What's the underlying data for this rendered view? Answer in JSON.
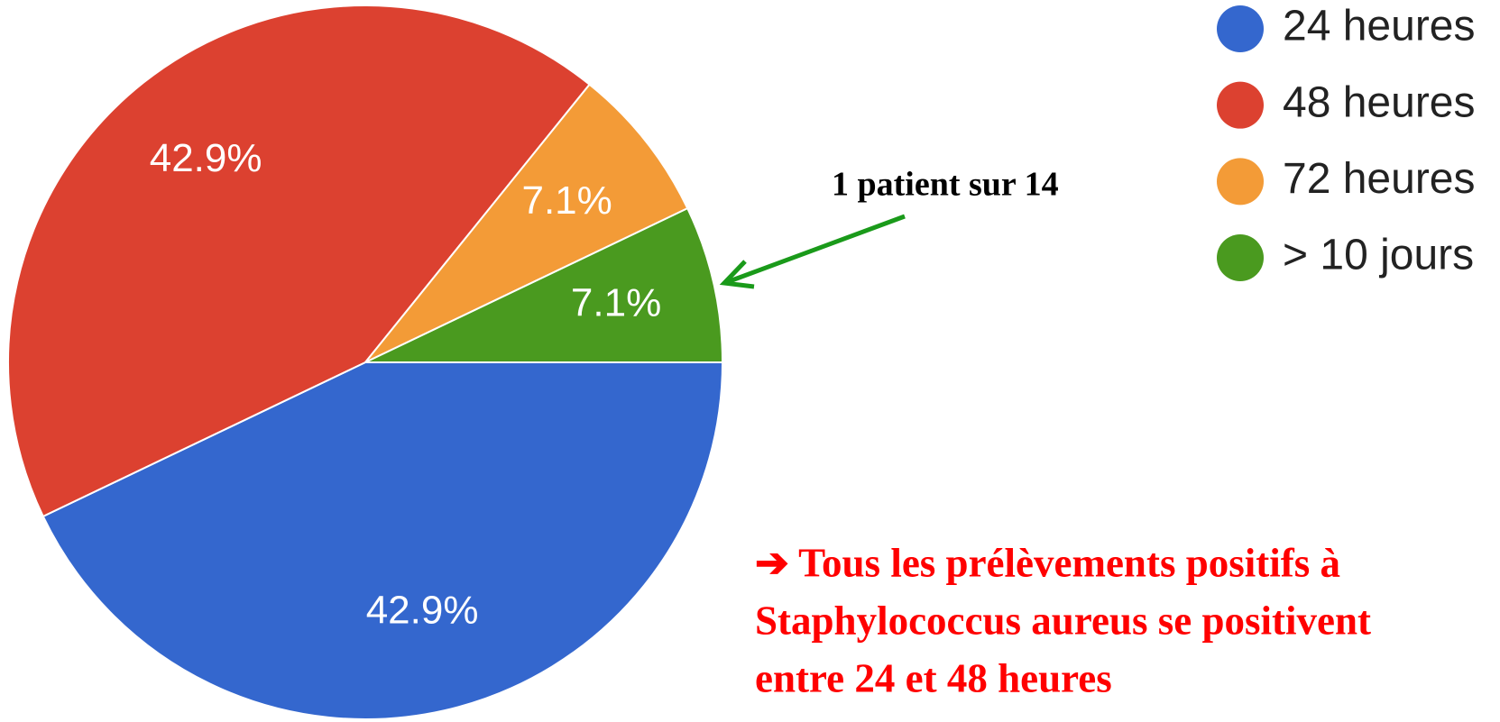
{
  "chart_data": {
    "type": "pie",
    "categories": [
      "24 heures",
      "48 heures",
      "72 heures",
      "> 10 jours"
    ],
    "values": [
      42.9,
      42.9,
      7.1,
      7.1
    ],
    "value_labels": [
      "42.9%",
      "42.9%",
      "7.1%",
      "7.1%"
    ],
    "colors": [
      "#3467ce",
      "#dc4130",
      "#f39b37",
      "#4a9a1f"
    ],
    "legend": "right",
    "annotation": "1 patient sur 14",
    "conclusion": [
      "➔ Tous les prélèvements positifs à",
      "Staphylococcus aureus se positivent",
      "entre 24 et 48 heures"
    ]
  }
}
